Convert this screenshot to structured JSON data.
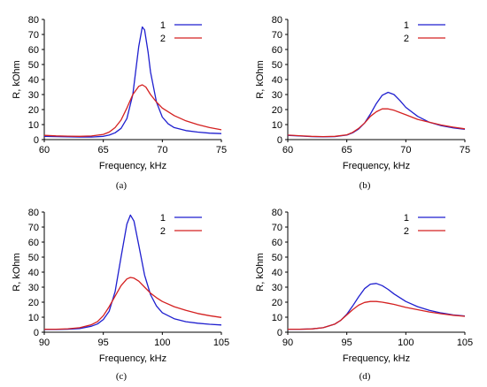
{
  "chart_data": [
    {
      "type": "line",
      "panel_label": "(a)",
      "xlabel": "Frequency, kHz",
      "ylabel": "R, kOhm",
      "xlim": [
        60,
        75
      ],
      "ylim": [
        0,
        80
      ],
      "xticks": [
        "60",
        "65",
        "70",
        "75"
      ],
      "yticks": [
        "0",
        "10",
        "20",
        "30",
        "40",
        "50",
        "60",
        "70",
        "80"
      ],
      "legend": "top-right",
      "grid": false,
      "series": [
        {
          "name": "1",
          "color": "#1f1fcf",
          "x": [
            60,
            61,
            62,
            63,
            64,
            65,
            65.5,
            66,
            66.5,
            67,
            67.5,
            68,
            68.3,
            68.5,
            68.8,
            69,
            69.5,
            70,
            70.5,
            71,
            72,
            73,
            74,
            75
          ],
          "y": [
            2.2,
            2.0,
            1.8,
            1.7,
            1.7,
            2.2,
            3.0,
            4.5,
            7.5,
            14,
            30,
            62,
            75,
            73,
            58,
            45,
            25,
            15,
            10.5,
            8,
            6,
            5,
            4.3,
            4
          ]
        },
        {
          "name": "2",
          "color": "#d42020",
          "x": [
            60,
            61,
            62,
            63,
            64,
            65,
            65.5,
            66,
            66.5,
            67,
            67.5,
            68,
            68.3,
            68.6,
            69,
            69.5,
            70,
            71,
            72,
            73,
            74,
            75
          ],
          "y": [
            2.8,
            2.5,
            2.3,
            2.2,
            2.4,
            3.5,
            5,
            8,
            13,
            21,
            30,
            35.5,
            36.5,
            35,
            30,
            25,
            21,
            16,
            12.5,
            10,
            8,
            6.5
          ]
        }
      ]
    },
    {
      "type": "line",
      "panel_label": "(b)",
      "xlabel": "Frequency, kHz",
      "ylabel": "R, kOhm",
      "xlim": [
        60,
        75
      ],
      "ylim": [
        0,
        80
      ],
      "xticks": [
        "60",
        "65",
        "70",
        "75"
      ],
      "yticks": [
        "0",
        "10",
        "20",
        "30",
        "40",
        "50",
        "60",
        "70",
        "80"
      ],
      "legend": "top-right",
      "grid": false,
      "series": [
        {
          "name": "1",
          "color": "#1f1fcf",
          "x": [
            60,
            61,
            62,
            63,
            64,
            65,
            65.5,
            66,
            66.5,
            67,
            67.5,
            68,
            68.5,
            69,
            69.5,
            70,
            71,
            72,
            73,
            74,
            75
          ],
          "y": [
            2.8,
            2.4,
            2.0,
            1.8,
            2.0,
            3.0,
            4.5,
            7,
            11,
            17,
            24,
            29.5,
            31.5,
            30,
            26,
            21.5,
            15.5,
            11.5,
            9.3,
            7.8,
            6.8
          ]
        },
        {
          "name": "2",
          "color": "#d42020",
          "x": [
            60,
            61,
            62,
            63,
            64,
            65,
            65.5,
            66,
            66.5,
            67,
            67.5,
            68,
            68.5,
            69,
            69.5,
            70,
            71,
            72,
            73,
            74,
            75
          ],
          "y": [
            3.0,
            2.6,
            2.2,
            2.0,
            2.2,
            3.2,
            4.8,
            7.5,
            11,
            15.5,
            18.5,
            20.5,
            20.5,
            19.5,
            18,
            16.5,
            13.5,
            11.5,
            9.7,
            8.3,
            7.2
          ]
        }
      ]
    },
    {
      "type": "line",
      "panel_label": "(c)",
      "xlabel": "Frequency, kHz",
      "ylabel": "R, kOhm",
      "xlim": [
        90,
        105
      ],
      "ylim": [
        0,
        80
      ],
      "xticks": [
        "90",
        "95",
        "100",
        "105"
      ],
      "yticks": [
        "0",
        "10",
        "20",
        "30",
        "40",
        "50",
        "60",
        "70",
        "80"
      ],
      "legend": "top-right",
      "grid": false,
      "series": [
        {
          "name": "1",
          "color": "#1f1fcf",
          "x": [
            90,
            91,
            92,
            93,
            94,
            94.5,
            95,
            95.5,
            96,
            96.5,
            97,
            97.3,
            97.6,
            98,
            98.5,
            99,
            99.5,
            100,
            101,
            102,
            103,
            104,
            105
          ],
          "y": [
            1.8,
            1.8,
            2.0,
            2.5,
            4.0,
            5.5,
            8.5,
            14,
            27,
            50,
            72,
            78,
            74,
            58,
            38,
            25,
            17.5,
            13,
            9,
            7,
            6,
            5.3,
            4.8
          ]
        },
        {
          "name": "2",
          "color": "#d42020",
          "x": [
            90,
            91,
            92,
            93,
            94,
            94.5,
            95,
            95.5,
            96,
            96.5,
            97,
            97.3,
            97.6,
            98,
            98.5,
            99,
            99.5,
            100,
            101,
            102,
            103,
            104,
            105
          ],
          "y": [
            2.0,
            2.0,
            2.3,
            3.0,
            5.0,
            7.0,
            11,
            17,
            24,
            31,
            35.5,
            36.5,
            36,
            34,
            30,
            26,
            23,
            20.5,
            17,
            14.5,
            12.5,
            11,
            9.8
          ]
        }
      ]
    },
    {
      "type": "line",
      "panel_label": "(d)",
      "xlabel": "Frequency, kHz",
      "ylabel": "R, kOhm",
      "xlim": [
        90,
        105
      ],
      "ylim": [
        0,
        80
      ],
      "xticks": [
        "90",
        "95",
        "100",
        "105"
      ],
      "yticks": [
        "0",
        "10",
        "20",
        "30",
        "40",
        "50",
        "60",
        "70",
        "80"
      ],
      "legend": "top-right",
      "grid": false,
      "series": [
        {
          "name": "1",
          "color": "#1f1fcf",
          "x": [
            90,
            91,
            92,
            93,
            94,
            94.5,
            95,
            95.5,
            96,
            96.5,
            97,
            97.5,
            98,
            98.5,
            99,
            100,
            101,
            102,
            103,
            104,
            105
          ],
          "y": [
            2.0,
            2.0,
            2.2,
            3.0,
            5.5,
            8,
            12,
            17.5,
            23.5,
            29,
            32,
            32.5,
            31,
            28.5,
            25.5,
            20.5,
            17,
            14.5,
            12.8,
            11.5,
            10.8
          ]
        },
        {
          "name": "2",
          "color": "#d42020",
          "x": [
            90,
            91,
            92,
            93,
            94,
            94.5,
            95,
            95.5,
            96,
            96.5,
            97,
            97.5,
            98,
            98.5,
            99,
            100,
            101,
            102,
            103,
            104,
            105
          ],
          "y": [
            2.0,
            2.0,
            2.2,
            3.0,
            5.5,
            8,
            11.5,
            15,
            18,
            19.8,
            20.5,
            20.5,
            20,
            19.3,
            18.5,
            16.5,
            15,
            13.5,
            12.3,
            11.3,
            10.6
          ]
        }
      ]
    }
  ]
}
